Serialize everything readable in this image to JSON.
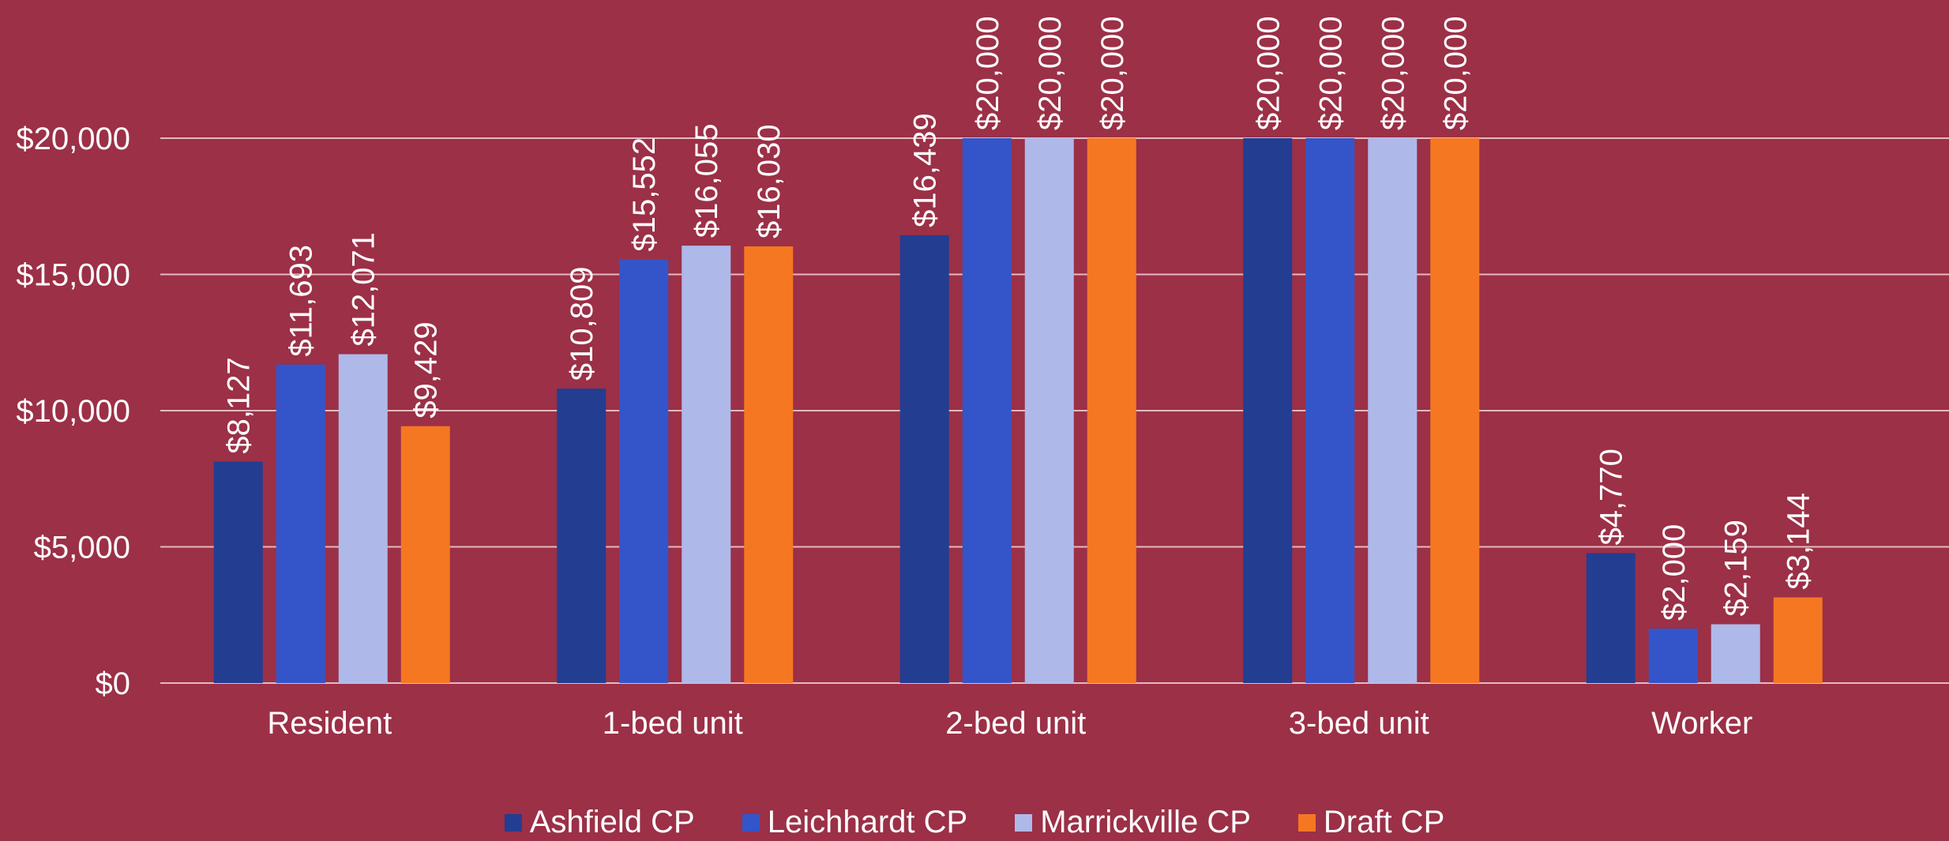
{
  "colors": {
    "background": "#9B3047",
    "gridline": "#E6B8C2",
    "axis": "#E6B8C2",
    "text": "#FFFFFF"
  },
  "chart_data": {
    "type": "bar",
    "categories": [
      "Resident",
      "1-bed unit",
      "2-bed unit",
      "3-bed unit",
      "Worker"
    ],
    "series": [
      {
        "name": "Ashfield CP",
        "color": "#233D91",
        "values": [
          8127,
          10809,
          16439,
          20000,
          4770
        ],
        "labels": [
          "$8,127",
          "$10,809",
          "$16,439",
          "$20,000",
          "$4,770"
        ]
      },
      {
        "name": "Leichhardt CP",
        "color": "#3455C9",
        "values": [
          11693,
          15552,
          20000,
          20000,
          2000
        ],
        "labels": [
          "$11,693",
          "$15,552",
          "$20,000",
          "$20,000",
          "$2,000"
        ]
      },
      {
        "name": "Marrickville CP",
        "color": "#AEB9EA",
        "values": [
          12071,
          16055,
          20000,
          20000,
          2159
        ],
        "labels": [
          "$12,071",
          "$16,055",
          "$20,000",
          "$20,000",
          "$2,159"
        ]
      },
      {
        "name": "Draft CP",
        "color": "#F57722",
        "values": [
          9429,
          16030,
          20000,
          20000,
          3144
        ],
        "labels": [
          "$9,429",
          "$16,030",
          "$20,000",
          "$20,000",
          "$3,144"
        ]
      }
    ],
    "yticks": [
      0,
      5000,
      10000,
      15000,
      20000
    ],
    "ytick_labels": [
      "$0",
      "$5,000",
      "$10,000",
      "$15,000",
      "$20,000"
    ],
    "ylim": [
      0,
      20000
    ],
    "grid": true,
    "legend": "bottom",
    "title": "",
    "xlabel": "",
    "ylabel": ""
  }
}
